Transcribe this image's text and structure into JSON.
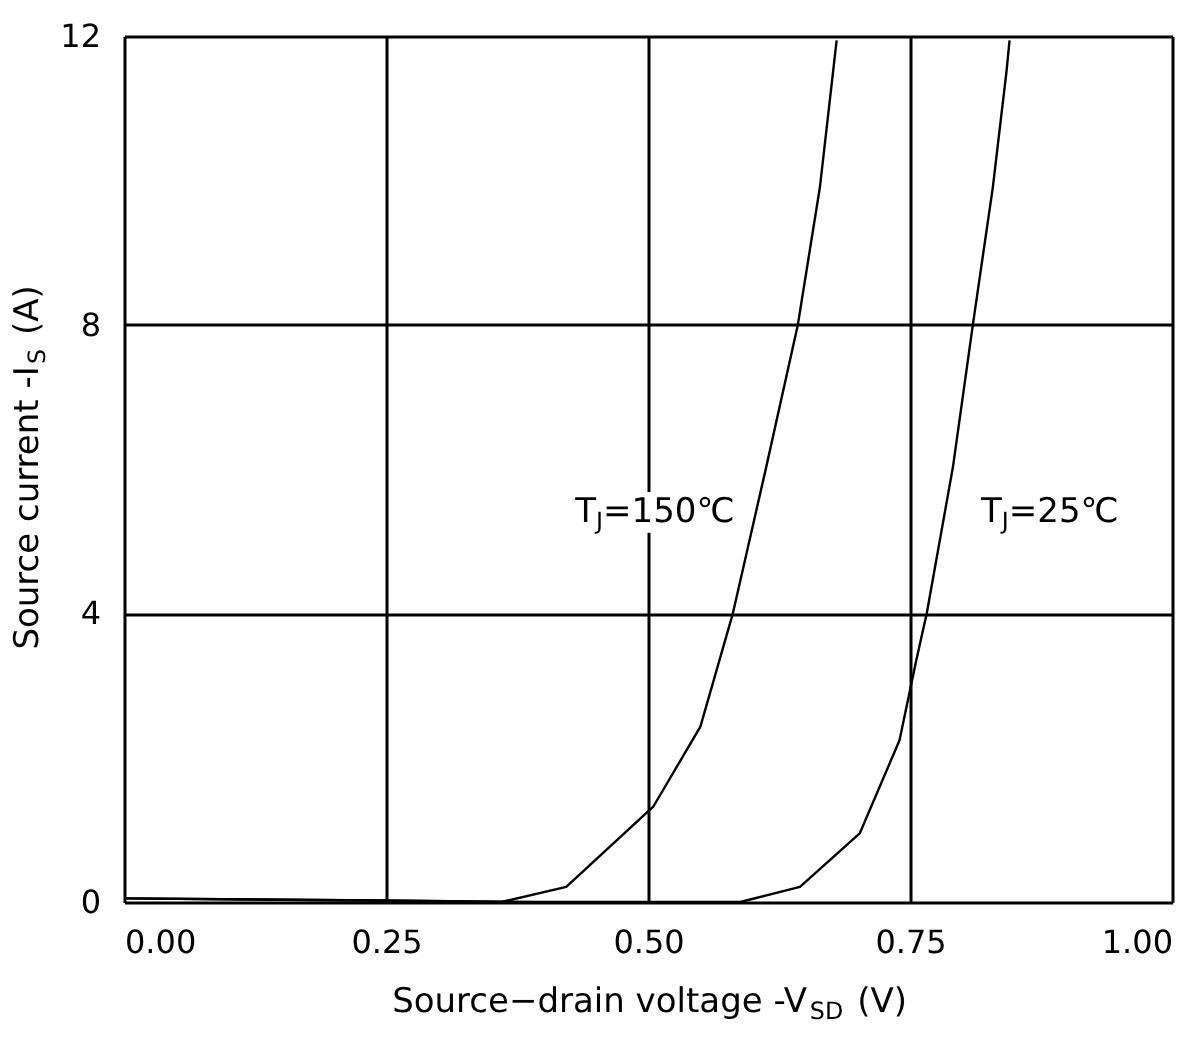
{
  "chart_data": {
    "type": "line",
    "xlabel": "Source−drain voltage -V$_{SD}$ (V)",
    "ylabel": "Source current -I$_{S}$ (A)",
    "xlim": [
      0,
      1
    ],
    "xticks": [
      {
        "value": 0,
        "label": "0.00"
      },
      {
        "value": 0.25,
        "label": "0.25"
      },
      {
        "value": 0.5,
        "label": "0.50"
      },
      {
        "value": 0.75,
        "label": "0.75"
      },
      {
        "value": 1,
        "label": "1.00"
      }
    ],
    "ylim": [
      0,
      12
    ],
    "yticks": [
      0,
      4,
      8,
      12
    ],
    "grid": true,
    "marker": "none",
    "line_style": "solid",
    "series": [
      {
        "name": "T$_{J}$=150℃",
        "color": "#000000",
        "x": [
          0,
          0.25,
          0.36,
          0.422,
          0.505,
          0.55,
          0.581,
          0.613,
          0.643,
          0.664,
          0.68
        ],
        "values": [
          0.05,
          0.02,
          0,
          0.21,
          1.32,
          2.43,
          4.0,
          6.04,
          8.0,
          9.9,
          11.94
        ]
      },
      {
        "name": "T$_{J}$=25℃",
        "color": "#000000",
        "x": [
          0,
          0.4,
          0.588,
          0.645,
          0.702,
          0.74,
          0.756,
          0.766,
          0.791,
          0.81,
          0.829,
          0.842,
          0.845
        ],
        "values": [
          0.05,
          0.0,
          0,
          0.21,
          0.95,
          2.24,
          3.35,
          4.0,
          6.03,
          8.0,
          9.9,
          11.5,
          11.94
        ]
      }
    ]
  }
}
